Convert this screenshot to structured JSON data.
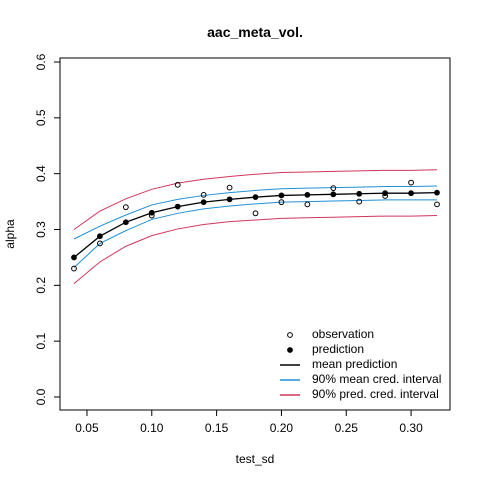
{
  "chart_data": {
    "type": "line",
    "title": "aac_meta_vol.",
    "xlabel": "test_sd",
    "ylabel": "alpha",
    "xlim": [
      0.04,
      0.32
    ],
    "ylim": [
      0.0,
      0.6
    ],
    "xticks": [
      0.05,
      0.1,
      0.15,
      0.2,
      0.25,
      0.3
    ],
    "xtick_labels": [
      "0.05",
      "0.10",
      "0.15",
      "0.20",
      "0.25",
      "0.30"
    ],
    "yticks": [
      0.0,
      0.1,
      0.2,
      0.3,
      0.4,
      0.5,
      0.6
    ],
    "ytick_labels": [
      "0.0",
      "0.1",
      "0.2",
      "0.3",
      "0.4",
      "0.5",
      "0.6"
    ],
    "grid": false,
    "legend_position": "bottom-right",
    "observation": {
      "x": [
        0.04,
        0.06,
        0.08,
        0.1,
        0.12,
        0.14,
        0.16,
        0.18,
        0.2,
        0.22,
        0.24,
        0.26,
        0.28,
        0.3,
        0.32
      ],
      "y": [
        0.23,
        0.275,
        0.34,
        0.325,
        0.38,
        0.362,
        0.375,
        0.329,
        0.349,
        0.345,
        0.374,
        0.35,
        0.36,
        0.384,
        0.345
      ]
    },
    "prediction": {
      "x": [
        0.04,
        0.06,
        0.08,
        0.1,
        0.12,
        0.14,
        0.16,
        0.18,
        0.2,
        0.22,
        0.24,
        0.26,
        0.28,
        0.3,
        0.32
      ],
      "y": [
        0.25,
        0.288,
        0.313,
        0.33,
        0.341,
        0.349,
        0.354,
        0.358,
        0.361,
        0.362,
        0.363,
        0.364,
        0.365,
        0.365,
        0.366
      ]
    },
    "mean_prediction": {
      "x": [
        0.04,
        0.06,
        0.08,
        0.1,
        0.12,
        0.14,
        0.16,
        0.18,
        0.2,
        0.22,
        0.24,
        0.26,
        0.28,
        0.3,
        0.32
      ],
      "y": [
        0.25,
        0.288,
        0.313,
        0.33,
        0.341,
        0.349,
        0.354,
        0.358,
        0.361,
        0.362,
        0.363,
        0.364,
        0.365,
        0.365,
        0.366
      ]
    },
    "mean_cred_interval": {
      "x": [
        0.04,
        0.06,
        0.08,
        0.1,
        0.12,
        0.14,
        0.16,
        0.18,
        0.2,
        0.22,
        0.24,
        0.26,
        0.28,
        0.3,
        0.32
      ],
      "lower": [
        0.232,
        0.275,
        0.298,
        0.318,
        0.329,
        0.337,
        0.342,
        0.346,
        0.349,
        0.35,
        0.351,
        0.352,
        0.353,
        0.353,
        0.353
      ],
      "upper": [
        0.283,
        0.306,
        0.326,
        0.344,
        0.354,
        0.361,
        0.366,
        0.37,
        0.373,
        0.374,
        0.375,
        0.376,
        0.377,
        0.377,
        0.378
      ]
    },
    "pred_cred_interval": {
      "x": [
        0.04,
        0.06,
        0.08,
        0.1,
        0.12,
        0.14,
        0.16,
        0.18,
        0.2,
        0.22,
        0.24,
        0.26,
        0.28,
        0.3,
        0.32
      ],
      "lower": [
        0.203,
        0.242,
        0.27,
        0.289,
        0.301,
        0.309,
        0.314,
        0.317,
        0.32,
        0.321,
        0.322,
        0.323,
        0.324,
        0.324,
        0.325
      ],
      "upper": [
        0.3,
        0.333,
        0.355,
        0.372,
        0.383,
        0.39,
        0.395,
        0.399,
        0.402,
        0.403,
        0.404,
        0.405,
        0.406,
        0.406,
        0.407
      ]
    },
    "legend": [
      {
        "label": "observation",
        "kind": "open-point",
        "color": "#000000"
      },
      {
        "label": "prediction",
        "kind": "filled-point",
        "color": "#000000"
      },
      {
        "label": "mean prediction",
        "kind": "line",
        "color": "#000000"
      },
      {
        "label": "90% mean cred. interval",
        "kind": "line",
        "color": "#1f8fd6"
      },
      {
        "label": "90% pred. cred. interval",
        "kind": "line",
        "color": "#d1365c"
      }
    ],
    "colors": {
      "mean_line": "#000000",
      "mean_interval": "#1f8fd6",
      "pred_interval": "#d1365c"
    }
  }
}
